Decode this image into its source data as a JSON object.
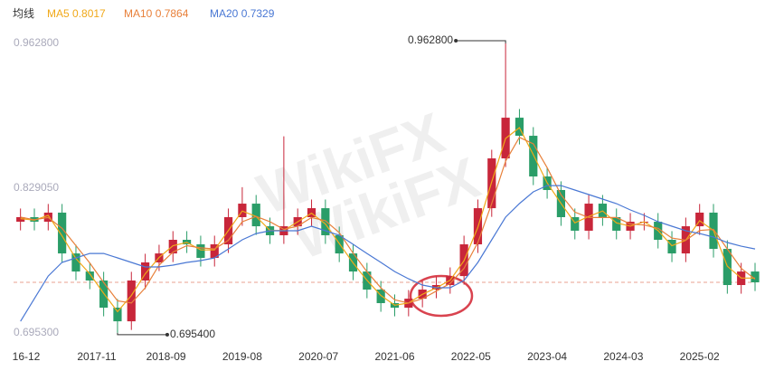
{
  "chart_data": {
    "type": "candlestick",
    "legend_title": "均线",
    "x": [
      "2016-12",
      "2017-02",
      "2017-04",
      "2017-06",
      "2017-08",
      "2017-10",
      "2017-12",
      "2018-02",
      "2018-04",
      "2018-06",
      "2018-08",
      "2018-10",
      "2018-12",
      "2019-02",
      "2019-04",
      "2019-06",
      "2019-08",
      "2019-10",
      "2019-12",
      "2020-02",
      "2020-04",
      "2020-06",
      "2020-08",
      "2020-10",
      "2020-12",
      "2021-02",
      "2021-04",
      "2021-06",
      "2021-08",
      "2021-10",
      "2021-12",
      "2022-02",
      "2022-04",
      "2022-06",
      "2022-08",
      "2022-10",
      "2022-12",
      "2023-02",
      "2023-04",
      "2023-06",
      "2023-08",
      "2023-10",
      "2023-12",
      "2024-02",
      "2024-04",
      "2024-06",
      "2024-08",
      "2024-10",
      "2024-12",
      "2025-02",
      "2025-04",
      "2025-06",
      "2025-08",
      "2025-10"
    ],
    "open": [
      0.7981,
      0.8023,
      0.7981,
      0.8065,
      0.7688,
      0.7521,
      0.7438,
      0.7187,
      0.7061,
      0.7438,
      0.7605,
      0.7688,
      0.7814,
      0.7772,
      0.7647,
      0.7772,
      0.8023,
      0.8148,
      0.7939,
      0.7856,
      0.7939,
      0.8023,
      0.8106,
      0.7856,
      0.7688,
      0.7521,
      0.7354,
      0.7229,
      0.7187,
      0.727,
      0.7354,
      0.7396,
      0.7479,
      0.7772,
      0.8106,
      0.8566,
      0.8942,
      0.8775,
      0.8399,
      0.8274,
      0.8023,
      0.7898,
      0.8148,
      0.8023,
      0.7898,
      0.7981,
      0.7981,
      0.7814,
      0.7688,
      0.7939,
      0.8065,
      0.773,
      0.7396,
      0.7521
    ],
    "high": [
      0.8103,
      0.8103,
      0.8145,
      0.8145,
      0.7768,
      0.7601,
      0.7518,
      0.7267,
      0.7518,
      0.7685,
      0.7768,
      0.7894,
      0.7894,
      0.7852,
      0.7852,
      0.8103,
      0.83,
      0.8228,
      0.8019,
      0.877,
      0.8103,
      0.8186,
      0.8186,
      0.7936,
      0.7768,
      0.7601,
      0.7434,
      0.7309,
      0.735,
      0.7434,
      0.7476,
      0.7559,
      0.7852,
      0.8186,
      0.8646,
      0.9628,
      0.9022,
      0.8855,
      0.8479,
      0.8354,
      0.8103,
      0.8228,
      0.8228,
      0.8103,
      0.8061,
      0.8061,
      0.8061,
      0.7894,
      0.8019,
      0.8145,
      0.8145,
      0.781,
      0.7601,
      0.7601
    ],
    "low": [
      0.7901,
      0.7901,
      0.7901,
      0.7608,
      0.7441,
      0.7358,
      0.7107,
      0.6954,
      0.6981,
      0.7358,
      0.7525,
      0.7608,
      0.7692,
      0.7567,
      0.7567,
      0.7692,
      0.7943,
      0.7859,
      0.7776,
      0.7776,
      0.7859,
      0.7943,
      0.7776,
      0.7608,
      0.7441,
      0.7274,
      0.7149,
      0.7107,
      0.7107,
      0.719,
      0.7274,
      0.7316,
      0.7399,
      0.7692,
      0.8026,
      0.8486,
      0.8695,
      0.8319,
      0.8194,
      0.7943,
      0.7818,
      0.7818,
      0.7943,
      0.7818,
      0.7818,
      0.7901,
      0.7734,
      0.7608,
      0.7608,
      0.7859,
      0.765,
      0.7316,
      0.7316,
      0.7341
    ],
    "close": [
      0.8023,
      0.7981,
      0.8065,
      0.7688,
      0.7521,
      0.7438,
      0.7187,
      0.7061,
      0.7438,
      0.7605,
      0.7688,
      0.7814,
      0.7772,
      0.7647,
      0.7772,
      0.8023,
      0.8148,
      0.7939,
      0.7856,
      0.7939,
      0.8023,
      0.8106,
      0.7856,
      0.7688,
      0.7521,
      0.7354,
      0.7229,
      0.7187,
      0.727,
      0.7354,
      0.7396,
      0.7479,
      0.7772,
      0.8106,
      0.8566,
      0.8942,
      0.8775,
      0.8399,
      0.8274,
      0.8023,
      0.7898,
      0.8148,
      0.8023,
      0.7898,
      0.7981,
      0.7981,
      0.7814,
      0.7688,
      0.7939,
      0.8065,
      0.773,
      0.7396,
      0.7521,
      0.7421
    ],
    "up_color": "#c8263a",
    "down_color": "#2a9d68",
    "series": [
      {
        "name": "MA5",
        "legend_value": 0.8017,
        "color": "#f0a818",
        "values": [
          0.801,
          0.7995,
          0.804,
          0.785,
          0.764,
          0.75,
          0.732,
          0.715,
          0.73,
          0.75,
          0.765,
          0.776,
          0.779,
          0.772,
          0.772,
          0.79,
          0.808,
          0.803,
          0.79,
          0.79,
          0.798,
          0.806,
          0.796,
          0.778,
          0.76,
          0.744,
          0.73,
          0.721,
          0.723,
          0.731,
          0.737,
          0.744,
          0.762,
          0.793,
          0.835,
          0.875,
          0.885,
          0.86,
          0.834,
          0.815,
          0.797,
          0.803,
          0.808,
          0.797,
          0.794,
          0.798,
          0.79,
          0.776,
          0.781,
          0.799,
          0.79,
          0.757,
          0.746,
          0.746
        ]
      },
      {
        "name": "MA10",
        "legend_value": 0.7864,
        "color": "#e8803a",
        "values": [
          0.8023,
          0.8,
          0.802,
          0.792,
          0.776,
          0.76,
          0.742,
          0.725,
          0.723,
          0.737,
          0.758,
          0.77,
          0.776,
          0.774,
          0.773,
          0.781,
          0.798,
          0.803,
          0.798,
          0.791,
          0.794,
          0.802,
          0.799,
          0.788,
          0.769,
          0.752,
          0.737,
          0.726,
          0.723,
          0.727,
          0.734,
          0.741,
          0.755,
          0.779,
          0.815,
          0.854,
          0.876,
          0.87,
          0.848,
          0.823,
          0.807,
          0.802,
          0.802,
          0.802,
          0.796,
          0.795,
          0.792,
          0.783,
          0.781,
          0.79,
          0.791,
          0.773,
          0.755,
          0.745
        ]
      },
      {
        "name": "MA20",
        "legend_value": 0.7329,
        "color": "#4a78d4",
        "values": [
          0.7061,
          0.727,
          0.7479,
          0.7605,
          0.7647,
          0.7688,
          0.7688,
          0.7647,
          0.7605,
          0.7563,
          0.7563,
          0.758,
          0.7605,
          0.7622,
          0.7647,
          0.773,
          0.7814,
          0.7872,
          0.7898,
          0.7898,
          0.7898,
          0.7939,
          0.7898,
          0.7856,
          0.7772,
          0.7688,
          0.7605,
          0.7521,
          0.7454,
          0.7396,
          0.7371,
          0.7371,
          0.7438,
          0.7605,
          0.7814,
          0.8023,
          0.8148,
          0.8257,
          0.8315,
          0.8315,
          0.8274,
          0.8232,
          0.819,
          0.8148,
          0.809,
          0.804,
          0.7981,
          0.7939,
          0.7898,
          0.7872,
          0.7839,
          0.7789,
          0.7755,
          0.773
        ]
      }
    ],
    "reference_line": 0.7421,
    "reference_color": "#e8a090",
    "annotations": [
      {
        "label": "0.962800",
        "x": "2022-10",
        "value": 0.9628
      },
      {
        "label": "0.695400",
        "x": "2018-02",
        "value": 0.6954
      }
    ],
    "xlim": [
      "2016-11",
      "2025-10"
    ],
    "xticks": [
      {
        "value": "2016-12",
        "label": "16-12"
      },
      "2017-11",
      "2018-09",
      "2019-08",
      "2020-07",
      "2021-06",
      "2022-05",
      "2023-04",
      "2024-03",
      "2025-02"
    ],
    "ylim": [
      0.6953,
      0.9628
    ],
    "yticks": [
      {
        "value": 0.9628,
        "label": "0.962800"
      },
      {
        "value": 0.82905,
        "label": "0.829050"
      },
      {
        "value": 0.6953,
        "label": "0.695300"
      }
    ],
    "grid": false
  }
}
